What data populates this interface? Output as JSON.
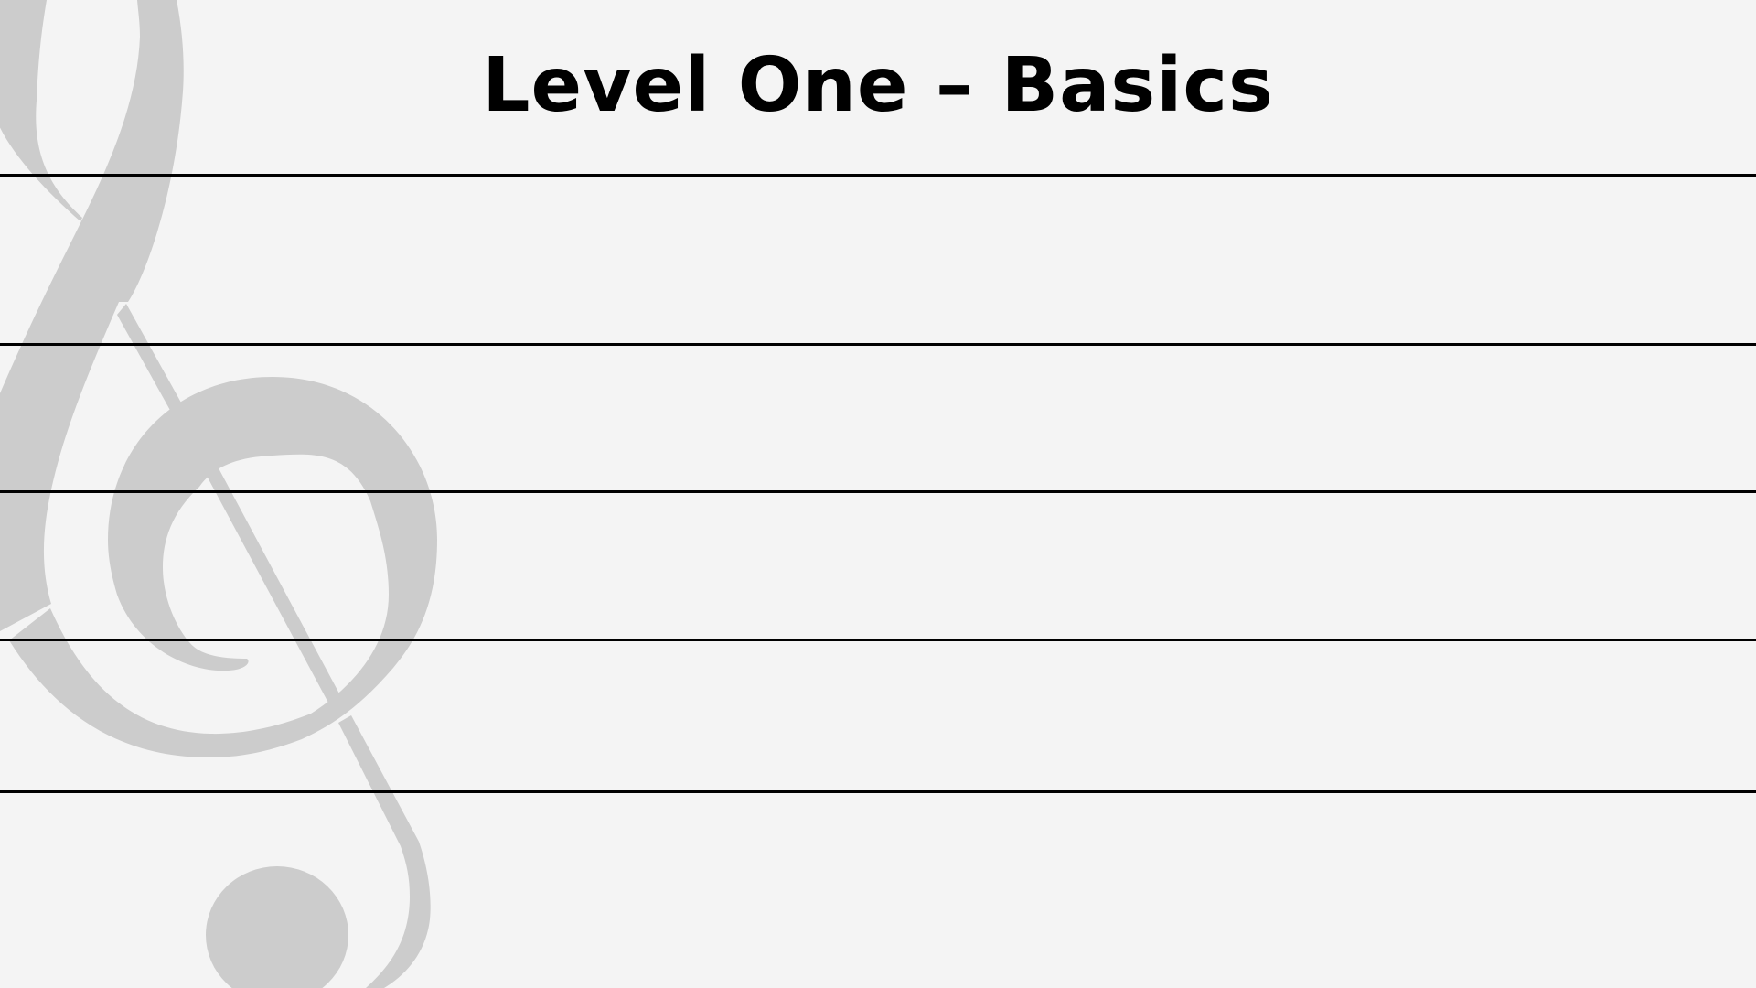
{
  "slide": {
    "title": "Level One – Basics",
    "background_color": "#f4f4f4",
    "line_color": "#000000",
    "clef_color": "#cccccc",
    "watermark_icon": "treble-clef-icon",
    "staff_line_count": 5
  }
}
